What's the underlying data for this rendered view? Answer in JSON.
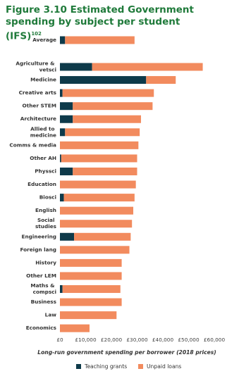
{
  "chart_data": {
    "type": "stacked-bar",
    "orientation": "horizontal",
    "title": "Figure 3.10 Estimated Government spending by subject per student (IFS)",
    "title_superscript": "102",
    "xlabel": "Long-run government spending per borrower (2018 prices)",
    "categories": [
      "Average",
      "Agriculture & vetsci",
      "Medicine",
      "Creative arts",
      "Other STEM",
      "Architecture",
      "Allied to medicine",
      "Comms & media",
      "Other AH",
      "Physsci",
      "Education",
      "Biosci",
      "English",
      "Social studies",
      "Engineering",
      "Foreign lang",
      "History",
      "Other LEM",
      "Maths & compsci",
      "Business",
      "Law",
      "Economics"
    ],
    "series": [
      {
        "name": "Teaching grants",
        "color": "#0e3a4a",
        "values": [
          2000,
          12500,
          33500,
          1000,
          5000,
          5000,
          2000,
          0,
          500,
          5000,
          0,
          1500,
          0,
          0,
          5500,
          0,
          0,
          0,
          1000,
          0,
          0,
          0
        ]
      },
      {
        "name": "Unpaid loans",
        "color": "#f28b5e",
        "values": [
          27000,
          43000,
          11500,
          35500,
          31000,
          26500,
          29000,
          30500,
          29500,
          25000,
          29500,
          27500,
          28500,
          28000,
          22000,
          27000,
          24000,
          24000,
          22500,
          24000,
          22000,
          11500
        ]
      }
    ],
    "xlim": [
      0,
      60000
    ],
    "xticks": [
      {
        "value": 0,
        "label": "£0"
      },
      {
        "value": 10000,
        "label": "£10,000"
      },
      {
        "value": 20000,
        "label": "£20,000"
      },
      {
        "value": 30000,
        "label": "£30,000"
      },
      {
        "value": 40000,
        "label": "£40,000"
      },
      {
        "value": 50000,
        "label": "£50,000"
      },
      {
        "value": 60000,
        "label": "£60,000"
      }
    ],
    "legend": "bottom",
    "grid": false
  }
}
